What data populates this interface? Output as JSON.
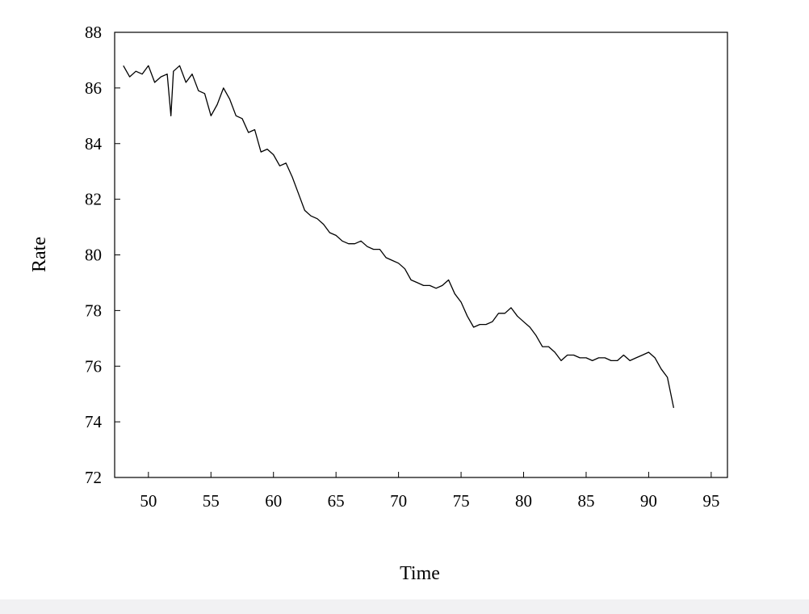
{
  "chart_data": {
    "type": "line",
    "title": "",
    "xlabel": "Time",
    "ylabel": "Rate",
    "xlim": [
      47.3,
      96.3
    ],
    "ylim": [
      72,
      88
    ],
    "x_ticks": [
      50,
      55,
      60,
      65,
      70,
      75,
      80,
      85,
      90,
      95
    ],
    "y_ticks": [
      72,
      74,
      76,
      78,
      80,
      82,
      84,
      86,
      88
    ],
    "grid": false,
    "legend": "none",
    "line_color": "#000000",
    "series": [
      {
        "x": [
          48.0,
          48.5,
          49.0,
          49.5,
          50.0,
          50.5,
          51.0,
          51.5,
          51.8,
          52.0,
          52.5,
          53.0,
          53.5,
          54.0,
          54.5,
          55.0,
          55.5,
          56.0,
          56.5,
          57.0,
          57.5,
          58.0,
          58.5,
          59.0,
          59.5,
          60.0,
          60.5,
          61.0,
          61.5,
          62.0,
          62.5,
          63.0,
          63.5,
          64.0,
          64.5,
          65.0,
          65.5,
          66.0,
          66.5,
          67.0,
          67.5,
          68.0,
          68.5,
          69.0,
          69.5,
          70.0,
          70.5,
          71.0,
          71.5,
          72.0,
          72.5,
          73.0,
          73.5,
          74.0,
          74.5,
          75.0,
          75.5,
          76.0,
          76.5,
          77.0,
          77.5,
          78.0,
          78.5,
          79.0,
          79.5,
          80.0,
          80.5,
          81.0,
          81.5,
          82.0,
          82.5,
          83.0,
          83.5,
          84.0,
          84.5,
          85.0,
          85.5,
          86.0,
          86.5,
          87.0,
          87.5,
          88.0,
          88.5,
          89.0,
          89.5,
          90.0,
          90.5,
          91.0,
          91.5,
          92.0
        ],
        "values": [
          86.8,
          86.4,
          86.6,
          86.5,
          86.8,
          86.2,
          86.4,
          86.5,
          85.0,
          86.6,
          86.8,
          86.2,
          86.5,
          85.9,
          85.8,
          85.0,
          85.4,
          86.0,
          85.6,
          85.0,
          84.9,
          84.4,
          84.5,
          83.7,
          83.8,
          83.6,
          83.2,
          83.3,
          82.8,
          82.2,
          81.6,
          81.4,
          81.3,
          81.1,
          80.8,
          80.7,
          80.5,
          80.4,
          80.4,
          80.5,
          80.3,
          80.2,
          80.2,
          79.9,
          79.8,
          79.7,
          79.5,
          79.1,
          79.0,
          78.9,
          78.9,
          78.8,
          78.9,
          79.1,
          78.6,
          78.3,
          77.8,
          77.4,
          77.5,
          77.5,
          77.6,
          77.9,
          77.9,
          78.1,
          77.8,
          77.6,
          77.4,
          77.1,
          76.7,
          76.7,
          76.5,
          76.2,
          76.4,
          76.4,
          76.3,
          76.3,
          76.2,
          76.3,
          76.3,
          76.2,
          76.2,
          76.4,
          76.2,
          76.3,
          76.4,
          76.5,
          76.3,
          75.9,
          75.6,
          74.5
        ]
      }
    ]
  }
}
